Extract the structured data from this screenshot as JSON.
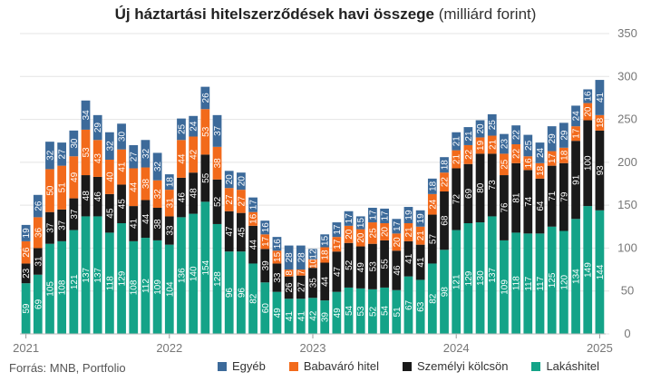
{
  "title_bold": "Új háztartási hitelszerződések havi összege",
  "title_rest": "(milliárd forint)",
  "source": "Forrás: MNB, Portfolio",
  "colors": {
    "lakashitel": "#14a388",
    "szemelyi": "#1a1a1a",
    "babavaro": "#f26a1b",
    "egyeb": "#3c6a9a",
    "grid": "#e4e4e4",
    "axis_text": "#777777"
  },
  "legend": [
    {
      "label": "Egyéb",
      "color": "#3c6a9a"
    },
    {
      "label": "Babaváró hitel",
      "color": "#f26a1b"
    },
    {
      "label": "Személyi kölcsön",
      "color": "#1a1a1a"
    },
    {
      "label": "Lakáshitel",
      "color": "#14a388"
    }
  ],
  "chart_data": {
    "type": "bar",
    "stacked": true,
    "x_tick_labels": [
      "2021",
      "2022",
      "2023",
      "2024",
      "2025"
    ],
    "ylim": [
      0,
      350
    ],
    "yticks": [
      0,
      50,
      100,
      150,
      200,
      250,
      300,
      350
    ],
    "y_axis_position": "right",
    "grid": true,
    "series": [
      {
        "name": "Lakáshitel",
        "values": [
          59,
          69,
          105,
          108,
          121,
          137,
          137,
          118,
          129,
          108,
          112,
          109,
          104,
          136,
          140,
          154,
          128,
          96,
          96,
          82,
          60,
          49,
          41,
          41,
          42,
          39,
          49,
          54,
          53,
          52,
          54,
          51,
          67,
          63,
          82,
          98,
          121,
          129,
          130,
          137,
          109,
          118,
          117,
          117,
          125,
          120,
          134,
          149,
          144
        ]
      },
      {
        "name": "Személyi kölcsön",
        "values": [
          23,
          31,
          37,
          37,
          37,
          48,
          46,
          45,
          45,
          41,
          44,
          38,
          33,
          46,
          48,
          55,
          52,
          47,
          45,
          44,
          39,
          33,
          26,
          27,
          35,
          44,
          47,
          52,
          49,
          53,
          55,
          46,
          41,
          41,
          57,
          68,
          72,
          69,
          80,
          73,
          76,
          81,
          74,
          64,
          71,
          79,
          91,
          100,
          93
        ]
      },
      {
        "name": "Babaváró hitel",
        "values": [
          26,
          36,
          50,
          51,
          49,
          53,
          43,
          40,
          41,
          44,
          38,
          32,
          31,
          44,
          42,
          53,
          38,
          27,
          27,
          16,
          17,
          15,
          8,
          7,
          10,
          18,
          17,
          20,
          20,
          25,
          20,
          20,
          21,
          21,
          24,
          22,
          21,
          22,
          19,
          21,
          25,
          22,
          16,
          18,
          17,
          18,
          17,
          20,
          18
        ]
      },
      {
        "name": "Egyéb",
        "values": [
          19,
          26,
          32,
          27,
          30,
          34,
          29,
          32,
          30,
          27,
          32,
          32,
          18,
          25,
          24,
          26,
          37,
          20,
          20,
          17,
          16,
          16,
          28,
          28,
          12,
          15,
          17,
          17,
          15,
          17,
          17,
          17,
          19,
          19,
          18,
          18,
          21,
          21,
          20,
          25,
          23,
          22,
          25,
          24,
          29,
          29,
          24,
          16,
          41
        ]
      }
    ],
    "series_labels": [
      {
        "name": "Lakáshitel",
        "labels": [
          "59",
          "69",
          "105",
          "108",
          "121",
          "137",
          "137",
          "118",
          "129",
          "108",
          "112",
          "109",
          "104",
          "136",
          "140",
          "154",
          "128",
          "96",
          "96",
          "82",
          "60",
          "49",
          "41",
          "41",
          "42",
          "39",
          "49",
          "54",
          "53",
          "52",
          "54",
          "51",
          "67",
          "63",
          "82",
          "98",
          "121",
          "129",
          "130",
          "137",
          "109",
          "118",
          "117",
          "117",
          "125",
          "120",
          "134",
          "149",
          "144"
        ]
      },
      {
        "name": "Személyi kölcsön",
        "labels": [
          "23",
          "31",
          "37",
          "37",
          "37",
          "48",
          "46",
          "45",
          "45",
          "41",
          "44",
          "38",
          "33",
          "46",
          "48",
          "55",
          "52",
          "47",
          "45",
          "44",
          "39",
          "33",
          "26",
          "27",
          "35",
          "44",
          "47",
          "52",
          "49",
          "53",
          "55",
          "46",
          "41",
          "41",
          "57",
          "68",
          "72",
          "69",
          "80",
          "73",
          "76",
          "81",
          "74",
          "64",
          "71",
          "79",
          "91",
          "100",
          "93"
        ]
      },
      {
        "name": "Babaváró hitel",
        "labels": [
          "26",
          "36",
          "50",
          "51",
          "49",
          "53",
          "43",
          "40",
          "41",
          "44",
          "38",
          "32",
          "31",
          "44",
          "42",
          "53",
          "38",
          "27",
          "27",
          "16",
          "17",
          "15",
          "8",
          "7",
          "10",
          "18",
          "17",
          "20",
          "20",
          "25",
          "20",
          "20",
          "21",
          "21",
          "24",
          "22",
          "21",
          "22",
          "19",
          "21",
          "25",
          "22",
          "16",
          "18",
          "17",
          "18",
          "17",
          "20",
          "18"
        ]
      },
      {
        "name": "Egyéb",
        "labels": [
          "19",
          "26",
          "32",
          "27",
          "30",
          "34",
          "29",
          "32",
          "30",
          "27",
          "32",
          "32",
          "18",
          "25",
          "24",
          "26",
          "37",
          "20",
          "20",
          "17",
          "16",
          "16",
          "28",
          "28",
          "12",
          "15",
          "17",
          "17",
          "15",
          "17",
          "17",
          "17",
          "19",
          "19",
          "18",
          "18",
          "21",
          "21",
          "20",
          "25",
          "23",
          "22",
          "25",
          "24",
          "29",
          "29",
          "24",
          "16",
          "41"
        ]
      }
    ]
  }
}
